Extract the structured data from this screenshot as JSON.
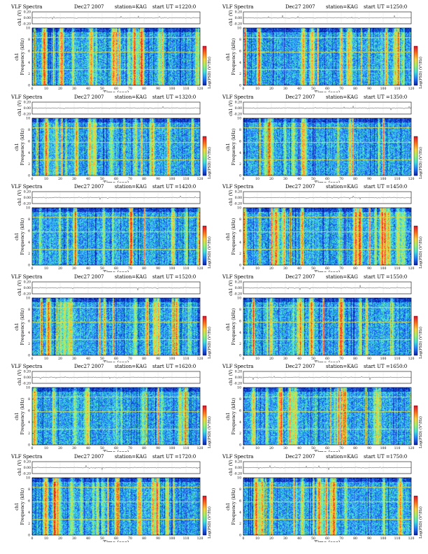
{
  "chart_data": {
    "type": "heatmap",
    "header": {
      "product": "VLF Spectra",
      "date": "Dec27 2007",
      "station": "station=KAG",
      "start_prefix": "start  UT ="
    },
    "waveform_axis": {
      "label": "ch1 (V)",
      "ticks": [
        "0.20",
        "0.00",
        "-0.20"
      ],
      "ylim": [
        -0.2,
        0.2
      ]
    },
    "spectrogram_axis": {
      "ylabel": "ch1\nFrequency (kHz)",
      "ylabel_channel": "ch1",
      "ylabel_text": "Frequency (kHz)",
      "yticks": [
        0,
        2,
        4,
        6,
        8,
        10
      ],
      "ylim": [
        0,
        10
      ]
    },
    "time_axis": {
      "label": "Time (sec)",
      "ticks": [
        0,
        10,
        20,
        30,
        40,
        50,
        60,
        70,
        80,
        90,
        100,
        110,
        120
      ],
      "xlim": [
        0,
        120
      ]
    },
    "colorbar": {
      "label": "Log(PSD) (V²/Hz)",
      "colors": [
        "#0a1fa8",
        "#1e78ff",
        "#3fe0e0",
        "#9df36a",
        "#ffd23a",
        "#ff6a1a",
        "#e0102a"
      ]
    },
    "panels": [
      {
        "start_ut": "1220:0",
        "seed": 11
      },
      {
        "start_ut": "1250:0",
        "seed": 23
      },
      {
        "start_ut": "1320:0",
        "seed": 37
      },
      {
        "start_ut": "1350:0",
        "seed": 41
      },
      {
        "start_ut": "1420:0",
        "seed": 53
      },
      {
        "start_ut": "1450:0",
        "seed": 67
      },
      {
        "start_ut": "1520:0",
        "seed": 71
      },
      {
        "start_ut": "1550:0",
        "seed": 83
      },
      {
        "start_ut": "1620:0",
        "seed": 97
      },
      {
        "start_ut": "1650:0",
        "seed": 101
      },
      {
        "start_ut": "1720:0",
        "seed": 113
      },
      {
        "start_ut": "1750:0",
        "seed": 127
      }
    ]
  }
}
